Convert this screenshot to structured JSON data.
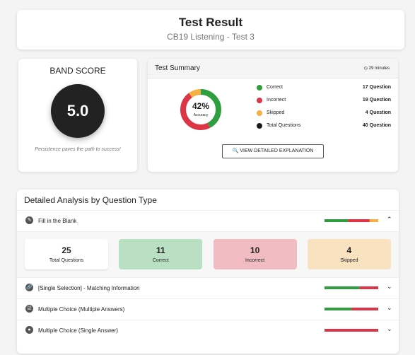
{
  "header": {
    "title": "Test Result",
    "subtitle": "CB19 Listening - Test 3"
  },
  "band_score": {
    "label": "BAND SCORE",
    "score": "5.0",
    "motto": "Persistence paves the path to success!"
  },
  "summary": {
    "title": "Test Summary",
    "time": "29 minutes",
    "accuracy": "42%",
    "accuracy_label": "Accuracy",
    "unit": "Question",
    "items": [
      {
        "name": "Correct",
        "color": "#2e9e3e",
        "count": 17
      },
      {
        "name": "Incorrect",
        "color": "#dc3545",
        "count": 19
      },
      {
        "name": "Skipped",
        "color": "#f5b042",
        "count": 4
      },
      {
        "name": "Total Questions",
        "color": "#1a1a1a",
        "count": 40
      }
    ],
    "button": "VIEW DETAILED EXPLANATION"
  },
  "analysis": {
    "title": "Detailed Analysis by Question Type",
    "types": [
      {
        "name": "Fill in the Blank",
        "expanded": true,
        "stats": [
          {
            "label": "Total Questions",
            "value": 25
          },
          {
            "label": "Correct",
            "value": 11
          },
          {
            "label": "Incorrect",
            "value": 10
          },
          {
            "label": "Skipped",
            "value": 4
          }
        ]
      },
      {
        "name": "[Single Selection] - Matching Information",
        "expanded": false,
        "bar": {
          "correct": 65,
          "incorrect": 35,
          "skipped": 0
        }
      },
      {
        "name": "Multiple Choice (Multiple Answers)",
        "expanded": false,
        "bar": {
          "correct": 50,
          "incorrect": 50,
          "skipped": 0
        }
      },
      {
        "name": "Multiple Choice (Single Answer)",
        "expanded": false,
        "bar": {
          "correct": 0,
          "incorrect": 100,
          "skipped": 0
        }
      }
    ]
  }
}
